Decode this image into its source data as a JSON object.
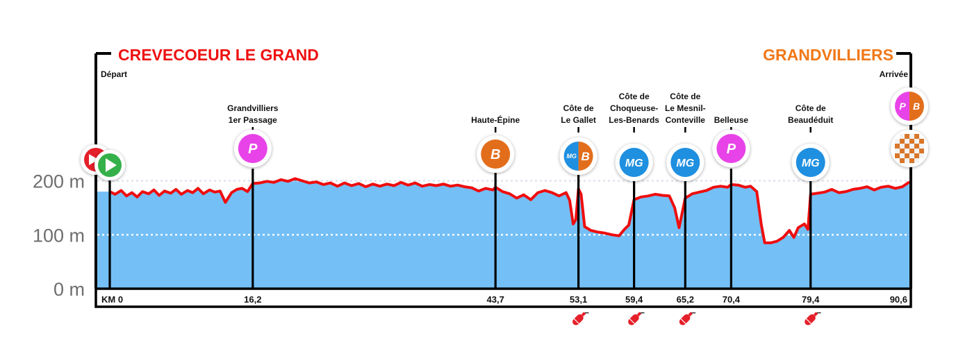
{
  "chart_data": {
    "type": "area",
    "title_left": "CREVECOEUR LE GRAND",
    "title_right": "GRANDVILLIERS",
    "start_label": "Départ",
    "finish_label": "Arrivée",
    "ylabel_ticks": [
      "0 m",
      "100 m",
      "200 m"
    ],
    "yticks": [
      0,
      100,
      200
    ],
    "ylim": [
      0,
      200
    ],
    "xlim": [
      0,
      90.6
    ],
    "grid": "dotted at 100 m and 200 m",
    "colors": {
      "fill": "#74bff6",
      "line": "#ee0e0e",
      "title_left": "#ee1111",
      "title_right": "#f07818",
      "sprint": "#e843e8",
      "bonus": "#e26e1c",
      "climb": "#1f8fe0"
    },
    "profile": [
      [
        0,
        180
      ],
      [
        0.6,
        175
      ],
      [
        1.3,
        182
      ],
      [
        1.9,
        172
      ],
      [
        2.5,
        178
      ],
      [
        3.1,
        170
      ],
      [
        3.7,
        180
      ],
      [
        4.4,
        176
      ],
      [
        5.0,
        183
      ],
      [
        5.6,
        173
      ],
      [
        6.2,
        181
      ],
      [
        6.9,
        177
      ],
      [
        7.5,
        184
      ],
      [
        8.1,
        175
      ],
      [
        8.8,
        182
      ],
      [
        9.4,
        178
      ],
      [
        10.0,
        186
      ],
      [
        10.6,
        176
      ],
      [
        11.3,
        183
      ],
      [
        11.9,
        179
      ],
      [
        12.5,
        181
      ],
      [
        13.1,
        160
      ],
      [
        13.8,
        178
      ],
      [
        14.4,
        184
      ],
      [
        15.0,
        186
      ],
      [
        15.6,
        180
      ],
      [
        16.2,
        195
      ],
      [
        17.0,
        196
      ],
      [
        17.8,
        199
      ],
      [
        18.6,
        197
      ],
      [
        19.4,
        202
      ],
      [
        20.2,
        199
      ],
      [
        21.0,
        204
      ],
      [
        21.8,
        200
      ],
      [
        22.6,
        196
      ],
      [
        23.4,
        198
      ],
      [
        24.2,
        193
      ],
      [
        25.0,
        196
      ],
      [
        25.8,
        190
      ],
      [
        26.6,
        196
      ],
      [
        27.4,
        191
      ],
      [
        28.2,
        195
      ],
      [
        29.0,
        189
      ],
      [
        29.8,
        194
      ],
      [
        30.6,
        190
      ],
      [
        31.4,
        194
      ],
      [
        32.2,
        191
      ],
      [
        33.0,
        197
      ],
      [
        33.8,
        192
      ],
      [
        34.6,
        196
      ],
      [
        35.4,
        190
      ],
      [
        36.2,
        193
      ],
      [
        37.0,
        191
      ],
      [
        37.8,
        194
      ],
      [
        38.6,
        190
      ],
      [
        39.4,
        192
      ],
      [
        40.2,
        189
      ],
      [
        41.0,
        187
      ],
      [
        41.8,
        181
      ],
      [
        42.6,
        186
      ],
      [
        43.4,
        183
      ],
      [
        43.7,
        188
      ],
      [
        44.5,
        180
      ],
      [
        45.3,
        176
      ],
      [
        46.1,
        168
      ],
      [
        46.9,
        174
      ],
      [
        47.7,
        165
      ],
      [
        48.5,
        178
      ],
      [
        49.3,
        182
      ],
      [
        50.1,
        178
      ],
      [
        50.9,
        172
      ],
      [
        51.7,
        178
      ],
      [
        52.1,
        164
      ],
      [
        52.5,
        120
      ],
      [
        52.8,
        128
      ],
      [
        53.1,
        185
      ],
      [
        53.4,
        175
      ],
      [
        53.8,
        115
      ],
      [
        54.5,
        108
      ],
      [
        55.3,
        105
      ],
      [
        56.1,
        103
      ],
      [
        56.9,
        100
      ],
      [
        57.7,
        98
      ],
      [
        58.3,
        110
      ],
      [
        58.8,
        118
      ],
      [
        59.4,
        165
      ],
      [
        60.2,
        170
      ],
      [
        61.0,
        172
      ],
      [
        61.8,
        175
      ],
      [
        62.6,
        173
      ],
      [
        63.4,
        172
      ],
      [
        64.0,
        150
      ],
      [
        64.5,
        113
      ],
      [
        65.2,
        168
      ],
      [
        66.0,
        176
      ],
      [
        66.8,
        179
      ],
      [
        67.6,
        182
      ],
      [
        68.4,
        188
      ],
      [
        69.2,
        190
      ],
      [
        70.0,
        188
      ],
      [
        70.4,
        193
      ],
      [
        71.2,
        192
      ],
      [
        72.0,
        188
      ],
      [
        72.6,
        190
      ],
      [
        73.3,
        180
      ],
      [
        73.8,
        120
      ],
      [
        74.2,
        85
      ],
      [
        74.9,
        85
      ],
      [
        75.6,
        88
      ],
      [
        76.3,
        95
      ],
      [
        77.0,
        108
      ],
      [
        77.5,
        95
      ],
      [
        78.0,
        113
      ],
      [
        78.7,
        120
      ],
      [
        79.1,
        110
      ],
      [
        79.4,
        175
      ],
      [
        80.2,
        177
      ],
      [
        81.0,
        179
      ],
      [
        81.8,
        184
      ],
      [
        82.6,
        178
      ],
      [
        83.4,
        180
      ],
      [
        84.2,
        184
      ],
      [
        85.0,
        186
      ],
      [
        85.8,
        189
      ],
      [
        86.6,
        183
      ],
      [
        87.4,
        188
      ],
      [
        88.2,
        190
      ],
      [
        89.0,
        186
      ],
      [
        89.8,
        189
      ],
      [
        90.6,
        198
      ]
    ],
    "markers": [
      {
        "km": 0,
        "km_label": "KM 0",
        "name": "",
        "icon": "start"
      },
      {
        "km": 16.2,
        "km_label": "16,2",
        "name": [
          "Grandvilliers",
          "1er Passage"
        ],
        "icon": "sprint",
        "text": "P"
      },
      {
        "km": 43.7,
        "km_label": "43,7",
        "name": [
          "Haute-Épine"
        ],
        "icon": "bonus",
        "text": "B"
      },
      {
        "km": 53.1,
        "km_label": "53,1",
        "name": [
          "Côte de",
          "Le Gallet"
        ],
        "icon": "climb-bonus",
        "text": "MG",
        "text2": "B"
      },
      {
        "km": 59.4,
        "km_label": "59,4",
        "name": [
          "Côte de",
          "Choqueuse-",
          "Les-Benards"
        ],
        "icon": "climb",
        "text": "MG"
      },
      {
        "km": 65.2,
        "km_label": "65,2",
        "name": [
          "Côte de",
          "Le Mesnil-",
          "Conteville"
        ],
        "icon": "climb",
        "text": "MG"
      },
      {
        "km": 70.4,
        "km_label": "70,4",
        "name": [
          "Belleuse"
        ],
        "icon": "sprint",
        "text": "P"
      },
      {
        "km": 79.4,
        "km_label": "79,4",
        "name": [
          "Côte de",
          "Beaudéduit"
        ],
        "icon": "climb",
        "text": "MG"
      },
      {
        "km": 90.6,
        "km_label": "90,6",
        "name": "",
        "icon": "finish",
        "text": "P",
        "text2": "B"
      }
    ],
    "extinguishers_km": [
      53.1,
      59.4,
      65.2,
      79.4
    ]
  }
}
